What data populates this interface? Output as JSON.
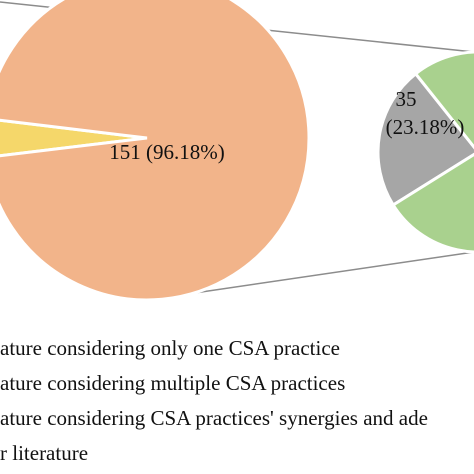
{
  "chart_data": {
    "type": "pie",
    "title": "",
    "main_pie": {
      "slices": [
        {
          "label": "151 (96.18%)",
          "value": 151,
          "percent": 96.18,
          "color": "#f2b48a"
        },
        {
          "label": "",
          "value": 6,
          "percent": 3.82,
          "color": "#f5d76a"
        }
      ]
    },
    "breakout_pie": {
      "slices": [
        {
          "label": "35",
          "sublabel": "(23.18%)",
          "value": 35,
          "percent": 23.18,
          "color": "#a6a6a6"
        },
        {
          "label": "",
          "value": 116,
          "percent": 76.82,
          "color": "#a9d18e"
        }
      ]
    },
    "legend": [
      {
        "text": "ature considering only one CSA practice",
        "color": "#f2b48a"
      },
      {
        "text": "ature considering multiple CSA practices",
        "color": "#a9d18e"
      },
      {
        "text": "ature considering CSA practices'  synergies and ade",
        "color": "#a6a6a6"
      },
      {
        "text": "r literature",
        "color": "#f5d76a"
      }
    ]
  }
}
